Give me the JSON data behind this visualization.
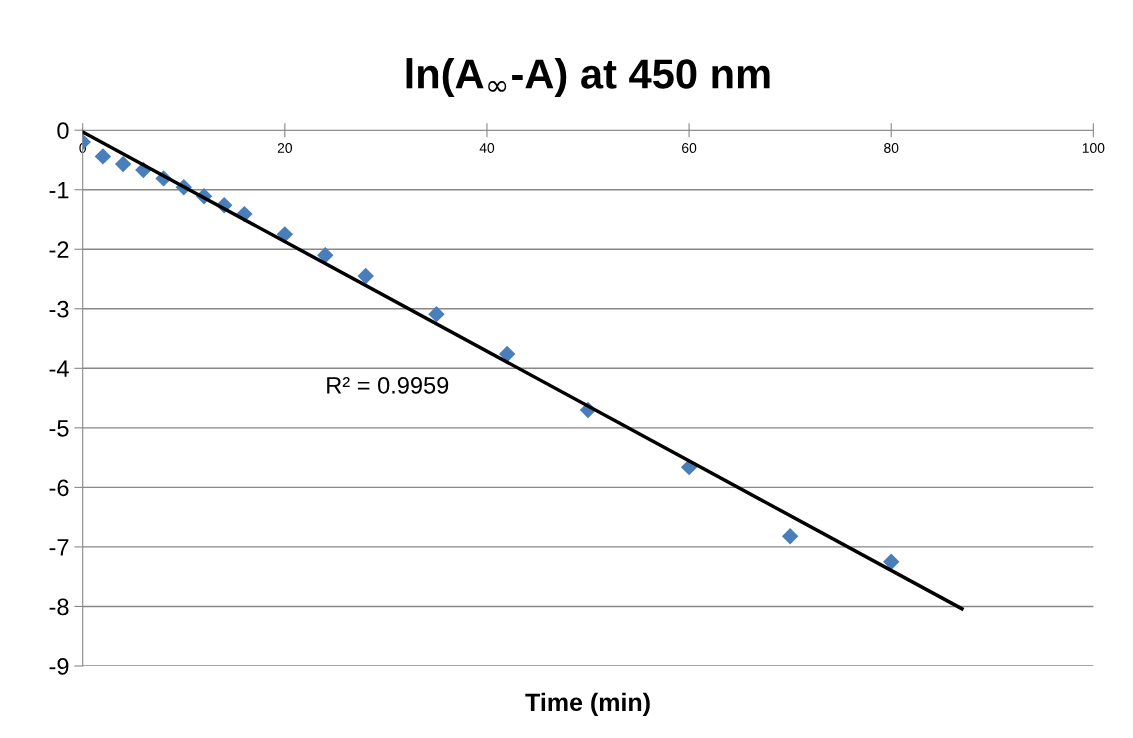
{
  "chart_data": {
    "type": "scatter",
    "title": "ln(A$_{∞}$-A) at 450 nm",
    "xlabel": "Time (min)",
    "x": [
      0,
      2,
      4,
      6,
      8,
      10,
      12,
      14,
      16,
      20,
      24,
      28,
      35,
      42,
      50,
      60,
      70,
      80
    ],
    "series": [
      {
        "color": "#4a7ebb",
        "values": [
          -0.2,
          -0.44,
          -0.57,
          -0.67,
          -0.81,
          -0.96,
          -1.11,
          -1.26,
          -1.41,
          -1.75,
          -2.1,
          -2.45,
          -3.09,
          -3.76,
          -4.7,
          -5.66,
          -6.82,
          -7.25
        ]
      },
      {
        "type": "line",
        "color": "#000000",
        "marker": "none",
        "x": [
          0,
          87
        ],
        "values": [
          -0.03,
          -8.04
        ]
      }
    ],
    "xlim": [
      0,
      100
    ],
    "xticks": [
      0,
      20,
      40,
      60,
      80,
      100
    ],
    "ylim": [
      -9,
      0
    ],
    "yticks": [
      -9,
      -8,
      -7,
      -6,
      -5,
      -4,
      -3,
      -2,
      -1,
      0
    ],
    "grid": "y",
    "marker": "diamond",
    "annotations": [
      "R² = 0.9959"
    ]
  }
}
